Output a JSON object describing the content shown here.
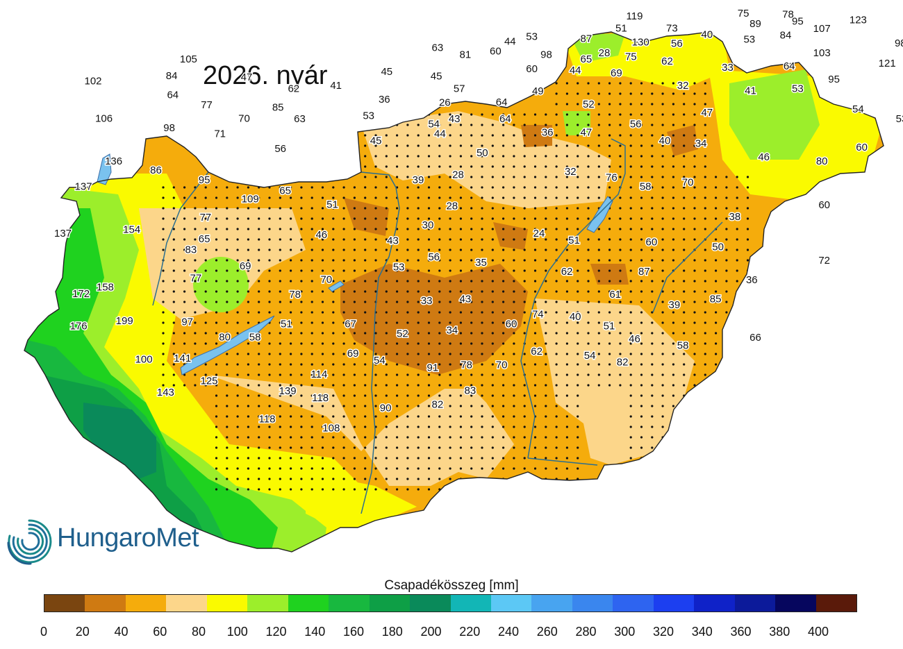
{
  "title": "2026. nyár",
  "logo_text": "HungaroMet",
  "legend": {
    "title": "Csapadékösszeg [mm]",
    "ticks": [
      "0",
      "20",
      "40",
      "60",
      "80",
      "100",
      "120",
      "140",
      "160",
      "180",
      "200",
      "220",
      "240",
      "260",
      "280",
      "300",
      "320",
      "340",
      "360",
      "380",
      "400"
    ],
    "colors": [
      "#7a4510",
      "#cf7a12",
      "#f5ac0c",
      "#fcd68a",
      "#fafa00",
      "#9cee2b",
      "#1fd21f",
      "#18b83f",
      "#0e9f46",
      "#0a8a5a",
      "#12b6b6",
      "#5cc8f5",
      "#48a4f0",
      "#3a86ee",
      "#2e64f0",
      "#1c3ff0",
      "#0f22c8",
      "#0c1a9a",
      "#06065e",
      "#5a1a0a"
    ]
  },
  "station_values": [
    {
      "v": "119",
      "lon": 20.45,
      "lat": 48.46
    },
    {
      "v": "75",
      "lon": 21.35,
      "lat": 48.52
    },
    {
      "v": "78",
      "lon": 21.72,
      "lat": 48.5
    },
    {
      "v": "95",
      "lon": 21.8,
      "lat": 48.35
    },
    {
      "v": "123",
      "lon": 22.3,
      "lat": 48.38
    },
    {
      "v": "89",
      "lon": 21.45,
      "lat": 48.3
    },
    {
      "v": "107",
      "lon": 22.0,
      "lat": 48.19
    },
    {
      "v": "51",
      "lon": 20.34,
      "lat": 48.2
    },
    {
      "v": "73",
      "lon": 20.76,
      "lat": 48.2
    },
    {
      "v": "40",
      "lon": 21.05,
      "lat": 48.07
    },
    {
      "v": "84",
      "lon": 21.7,
      "lat": 48.05
    },
    {
      "v": "53",
      "lon": 19.6,
      "lat": 48.02
    },
    {
      "v": "44",
      "lon": 19.42,
      "lat": 47.92
    },
    {
      "v": "87",
      "lon": 20.05,
      "lat": 47.98
    },
    {
      "v": "130",
      "lon": 20.5,
      "lat": 47.9
    },
    {
      "v": "56",
      "lon": 20.8,
      "lat": 47.87
    },
    {
      "v": "53",
      "lon": 21.4,
      "lat": 47.96
    },
    {
      "v": "98",
      "lon": 22.65,
      "lat": 47.88
    },
    {
      "v": "63",
      "lon": 18.82,
      "lat": 47.78
    },
    {
      "v": "60",
      "lon": 19.3,
      "lat": 47.71
    },
    {
      "v": "81",
      "lon": 19.05,
      "lat": 47.63
    },
    {
      "v": "98",
      "lon": 19.72,
      "lat": 47.63
    },
    {
      "v": "28",
      "lon": 20.2,
      "lat": 47.67
    },
    {
      "v": "75",
      "lon": 20.42,
      "lat": 47.59
    },
    {
      "v": "65",
      "lon": 20.05,
      "lat": 47.54
    },
    {
      "v": "62",
      "lon": 20.72,
      "lat": 47.49
    },
    {
      "v": "103",
      "lon": 22.0,
      "lat": 47.67
    },
    {
      "v": "121",
      "lon": 22.54,
      "lat": 47.45
    },
    {
      "v": "105",
      "lon": 16.76,
      "lat": 47.54
    },
    {
      "v": "60",
      "lon": 19.6,
      "lat": 47.33
    },
    {
      "v": "44",
      "lon": 19.96,
      "lat": 47.3
    },
    {
      "v": "69",
      "lon": 20.3,
      "lat": 47.24
    },
    {
      "v": "33",
      "lon": 21.22,
      "lat": 47.36
    },
    {
      "v": "64",
      "lon": 21.73,
      "lat": 47.39
    },
    {
      "v": "45",
      "lon": 18.4,
      "lat": 47.27
    },
    {
      "v": "45",
      "lon": 18.81,
      "lat": 47.17
    },
    {
      "v": "84",
      "lon": 16.62,
      "lat": 47.18
    },
    {
      "v": "47",
      "lon": 17.24,
      "lat": 47.15
    },
    {
      "v": "102",
      "lon": 15.97,
      "lat": 47.07
    },
    {
      "v": "95",
      "lon": 22.1,
      "lat": 47.1
    },
    {
      "v": "41",
      "lon": 17.98,
      "lat": 46.97
    },
    {
      "v": "62",
      "lon": 17.63,
      "lat": 46.9
    },
    {
      "v": "57",
      "lon": 19.0,
      "lat": 46.9
    },
    {
      "v": "49",
      "lon": 19.65,
      "lat": 46.85
    },
    {
      "v": "32",
      "lon": 20.85,
      "lat": 46.97
    },
    {
      "v": "41",
      "lon": 21.41,
      "lat": 46.86
    },
    {
      "v": "53",
      "lon": 21.8,
      "lat": 46.9
    },
    {
      "v": "64",
      "lon": 16.63,
      "lat": 46.77
    },
    {
      "v": "36",
      "lon": 18.38,
      "lat": 46.67
    },
    {
      "v": "26",
      "lon": 18.88,
      "lat": 46.6
    },
    {
      "v": "64",
      "lon": 19.35,
      "lat": 46.61
    },
    {
      "v": "52",
      "lon": 20.07,
      "lat": 46.57
    },
    {
      "v": "77",
      "lon": 16.91,
      "lat": 46.55
    },
    {
      "v": "85",
      "lon": 17.5,
      "lat": 46.5
    },
    {
      "v": "47",
      "lon": 21.05,
      "lat": 46.39
    },
    {
      "v": "54",
      "lon": 22.3,
      "lat": 46.46
    },
    {
      "v": "106",
      "lon": 16.06,
      "lat": 46.26
    },
    {
      "v": "70",
      "lon": 17.22,
      "lat": 46.26
    },
    {
      "v": "63",
      "lon": 17.68,
      "lat": 46.25
    },
    {
      "v": "53",
      "lon": 18.25,
      "lat": 46.32
    },
    {
      "v": "43",
      "lon": 18.96,
      "lat": 46.25
    },
    {
      "v": "64",
      "lon": 19.38,
      "lat": 46.25
    },
    {
      "v": "54",
      "lon": 18.79,
      "lat": 46.14
    },
    {
      "v": "56",
      "lon": 20.46,
      "lat": 46.14
    },
    {
      "v": "53",
      "lon": 22.66,
      "lat": 46.25
    },
    {
      "v": "98",
      "lon": 16.6,
      "lat": 46.06
    },
    {
      "v": "71",
      "lon": 17.02,
      "lat": 45.93
    },
    {
      "v": "44",
      "lon": 18.84,
      "lat": 45.93
    },
    {
      "v": "36",
      "lon": 19.73,
      "lat": 45.96
    },
    {
      "v": "47",
      "lon": 20.05,
      "lat": 45.96
    },
    {
      "v": "45",
      "lon": 18.31,
      "lat": 45.78
    },
    {
      "v": "40",
      "lon": 20.7,
      "lat": 45.78
    },
    {
      "v": "34",
      "lon": 21.0,
      "lat": 45.72
    },
    {
      "v": "60",
      "lon": 22.33,
      "lat": 45.64
    },
    {
      "v": "56",
      "lon": 17.52,
      "lat": 45.61
    },
    {
      "v": "50",
      "lon": 19.19,
      "lat": 45.52
    },
    {
      "v": "46",
      "lon": 21.52,
      "lat": 45.43
    },
    {
      "v": "80",
      "lon": 22.0,
      "lat": 45.34
    },
    {
      "v": "136",
      "lon": 16.14,
      "lat": 45.34
    },
    {
      "v": "86",
      "lon": 16.49,
      "lat": 45.15
    },
    {
      "v": "28",
      "lon": 18.99,
      "lat": 45.05
    },
    {
      "v": "32",
      "lon": 19.92,
      "lat": 45.12
    },
    {
      "v": "137",
      "lon": 15.89,
      "lat": 44.8
    },
    {
      "v": "95",
      "lon": 16.89,
      "lat": 44.94
    },
    {
      "v": "65",
      "lon": 17.56,
      "lat": 44.71
    },
    {
      "v": "39",
      "lon": 18.66,
      "lat": 44.94
    },
    {
      "v": "76",
      "lon": 20.26,
      "lat": 44.99
    },
    {
      "v": "58",
      "lon": 20.54,
      "lat": 44.8
    },
    {
      "v": "70",
      "lon": 20.89,
      "lat": 44.89
    },
    {
      "v": "109",
      "lon": 17.27,
      "lat": 44.53
    },
    {
      "v": "51",
      "lon": 17.95,
      "lat": 44.41
    },
    {
      "v": "28",
      "lon": 18.94,
      "lat": 44.38
    },
    {
      "v": "60",
      "lon": 22.02,
      "lat": 44.4
    },
    {
      "v": "77",
      "lon": 16.9,
      "lat": 44.13
    },
    {
      "v": "38",
      "lon": 21.28,
      "lat": 44.15
    },
    {
      "v": "137",
      "lon": 15.72,
      "lat": 43.79
    },
    {
      "v": "154",
      "lon": 16.29,
      "lat": 43.87
    },
    {
      "v": "30",
      "lon": 18.74,
      "lat": 43.97
    },
    {
      "v": "24",
      "lon": 19.66,
      "lat": 43.79
    },
    {
      "v": "65",
      "lon": 16.89,
      "lat": 43.67
    },
    {
      "v": "46",
      "lon": 17.86,
      "lat": 43.76
    },
    {
      "v": "43",
      "lon": 18.45,
      "lat": 43.63
    },
    {
      "v": "51",
      "lon": 19.95,
      "lat": 43.64
    },
    {
      "v": "60",
      "lon": 20.59,
      "lat": 43.6
    },
    {
      "v": "50",
      "lon": 21.14,
      "lat": 43.5
    },
    {
      "v": "83",
      "lon": 16.78,
      "lat": 43.44
    },
    {
      "v": "56",
      "lon": 18.79,
      "lat": 43.28
    },
    {
      "v": "35",
      "lon": 19.18,
      "lat": 43.16
    },
    {
      "v": "72",
      "lon": 22.02,
      "lat": 43.21
    },
    {
      "v": "69",
      "lon": 17.23,
      "lat": 43.09
    },
    {
      "v": "53",
      "lon": 18.5,
      "lat": 43.07
    },
    {
      "v": "62",
      "lon": 19.89,
      "lat": 42.97
    },
    {
      "v": "87",
      "lon": 20.53,
      "lat": 42.97
    },
    {
      "v": "77",
      "lon": 16.82,
      "lat": 42.83
    },
    {
      "v": "70",
      "lon": 17.9,
      "lat": 42.8
    },
    {
      "v": "36",
      "lon": 21.42,
      "lat": 42.79
    },
    {
      "v": "158",
      "lon": 16.07,
      "lat": 42.63
    },
    {
      "v": "172",
      "lon": 15.87,
      "lat": 42.49
    },
    {
      "v": "78",
      "lon": 17.64,
      "lat": 42.48
    },
    {
      "v": "61",
      "lon": 20.29,
      "lat": 42.48
    },
    {
      "v": "43",
      "lon": 19.05,
      "lat": 42.38
    },
    {
      "v": "33",
      "lon": 18.73,
      "lat": 42.34
    },
    {
      "v": "85",
      "lon": 21.12,
      "lat": 42.38
    },
    {
      "v": "39",
      "lon": 20.78,
      "lat": 42.25
    },
    {
      "v": "74",
      "lon": 19.65,
      "lat": 42.05
    },
    {
      "v": "40",
      "lon": 19.96,
      "lat": 42.0
    },
    {
      "v": "199",
      "lon": 16.23,
      "lat": 41.91
    },
    {
      "v": "97",
      "lon": 16.75,
      "lat": 41.89
    },
    {
      "v": "51",
      "lon": 17.57,
      "lat": 41.84
    },
    {
      "v": "67",
      "lon": 18.1,
      "lat": 41.84
    },
    {
      "v": "60",
      "lon": 19.43,
      "lat": 41.84
    },
    {
      "v": "51",
      "lon": 20.24,
      "lat": 41.8
    },
    {
      "v": "176",
      "lon": 15.85,
      "lat": 41.8
    },
    {
      "v": "80",
      "lon": 17.06,
      "lat": 41.56
    },
    {
      "v": "58",
      "lon": 17.31,
      "lat": 41.56
    },
    {
      "v": "52",
      "lon": 18.53,
      "lat": 41.63
    },
    {
      "v": "34",
      "lon": 18.94,
      "lat": 41.71
    },
    {
      "v": "46",
      "lon": 20.45,
      "lat": 41.52
    },
    {
      "v": "66",
      "lon": 21.45,
      "lat": 41.55
    },
    {
      "v": "58",
      "lon": 20.85,
      "lat": 41.38
    },
    {
      "v": "69",
      "lon": 18.12,
      "lat": 41.21
    },
    {
      "v": "62",
      "lon": 19.64,
      "lat": 41.25
    },
    {
      "v": "54",
      "lon": 20.08,
      "lat": 41.16
    },
    {
      "v": "141",
      "lon": 16.71,
      "lat": 41.1
    },
    {
      "v": "100",
      "lon": 16.39,
      "lat": 41.08
    },
    {
      "v": "54",
      "lon": 18.34,
      "lat": 41.06
    },
    {
      "v": "82",
      "lon": 20.35,
      "lat": 41.02
    },
    {
      "v": "70",
      "lon": 19.35,
      "lat": 40.96
    },
    {
      "v": "78",
      "lon": 19.06,
      "lat": 40.96
    },
    {
      "v": "91",
      "lon": 18.78,
      "lat": 40.9
    },
    {
      "v": "114",
      "lon": 17.84,
      "lat": 40.76
    },
    {
      "v": "125",
      "lon": 16.93,
      "lat": 40.62
    },
    {
      "v": "83",
      "lon": 19.09,
      "lat": 40.41
    },
    {
      "v": "139",
      "lon": 17.58,
      "lat": 40.4
    },
    {
      "v": "143",
      "lon": 16.57,
      "lat": 40.37
    },
    {
      "v": "118",
      "lon": 17.85,
      "lat": 40.25
    },
    {
      "v": "82",
      "lon": 18.82,
      "lat": 40.11
    },
    {
      "v": "90",
      "lon": 18.39,
      "lat": 40.04
    },
    {
      "v": "118",
      "lon": 17.41,
      "lat": 39.8
    },
    {
      "v": "108",
      "lon": 17.94,
      "lat": 39.6
    }
  ]
}
